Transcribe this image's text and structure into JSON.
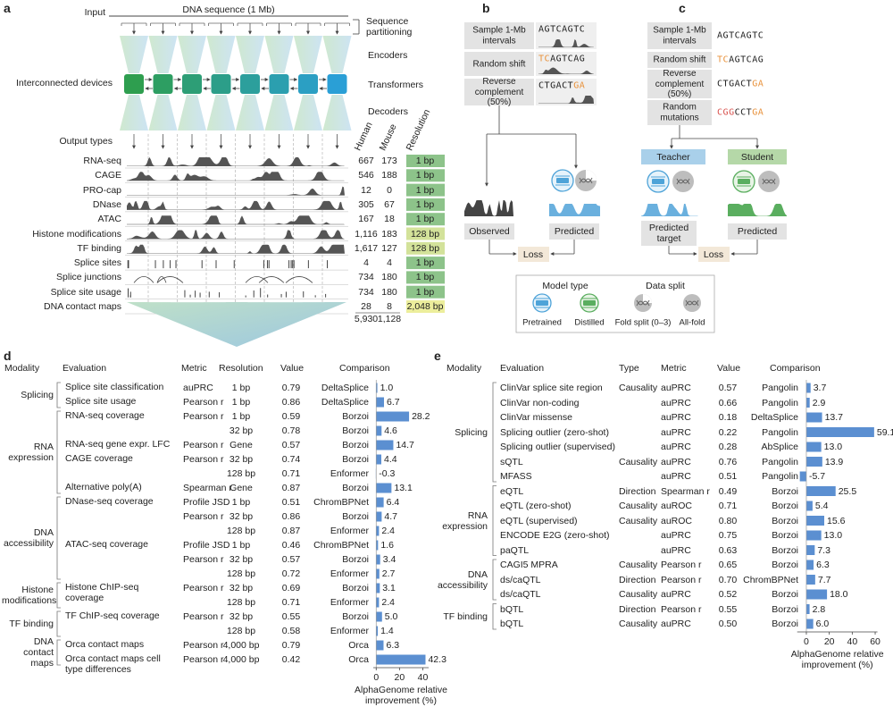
{
  "panel_a": {
    "label": "a",
    "input": "Input",
    "sequence": "DNA sequence (1 Mb)",
    "partitioning": "Sequence partitioning",
    "encoders": "Encoders",
    "transformers": "Transformers",
    "decoders": "Decoders",
    "devices": "Interconnected devices",
    "output_types": "Output types",
    "columns": [
      "Human",
      "Mouse",
      "Resolution"
    ],
    "tracks": [
      {
        "name": "RNA-seq",
        "human": "667",
        "mouse": "173",
        "resolution": "1 bp",
        "color": "#8dc38a"
      },
      {
        "name": "CAGE",
        "human": "546",
        "mouse": "188",
        "resolution": "1 bp",
        "color": "#8dc38a"
      },
      {
        "name": "PRO-cap",
        "human": "12",
        "mouse": "0",
        "resolution": "1 bp",
        "color": "#8dc38a"
      },
      {
        "name": "DNase",
        "human": "305",
        "mouse": "67",
        "resolution": "1 bp",
        "color": "#8dc38a"
      },
      {
        "name": "ATAC",
        "human": "167",
        "mouse": "18",
        "resolution": "1 bp",
        "color": "#8dc38a"
      },
      {
        "name": "Histone modifications",
        "human": "1,116",
        "mouse": "183",
        "resolution": "128 bp",
        "color": "#d3e29a"
      },
      {
        "name": "TF binding",
        "human": "1,617",
        "mouse": "127",
        "resolution": "128 bp",
        "color": "#d3e29a"
      },
      {
        "name": "Splice sites",
        "human": "4",
        "mouse": "4",
        "resolution": "1 bp",
        "color": "#8dc38a"
      },
      {
        "name": "Splice junctions",
        "human": "734",
        "mouse": "180",
        "resolution": "1 bp",
        "color": "#8dc38a"
      },
      {
        "name": "Splice site usage",
        "human": "734",
        "mouse": "180",
        "resolution": "1 bp",
        "color": "#8dc38a"
      },
      {
        "name": "DNA contact maps",
        "human": "28",
        "mouse": "8",
        "resolution": "2,048 bp",
        "color": "#ecee9c"
      }
    ],
    "totals": [
      "5,930",
      "1,128"
    ]
  },
  "panel_b": {
    "label": "b",
    "steps": [
      {
        "name": "Sample 1-Mb intervals",
        "sequence": "AGTCAGTC"
      },
      {
        "name": "Random shift",
        "sequence": "TCAGTCAG"
      },
      {
        "name": "Reverse complement (50%)",
        "sequence": "CTGACTGA"
      }
    ],
    "observed": "Observed",
    "predicted": "Predicted",
    "loss": "Loss"
  },
  "panel_c": {
    "label": "c",
    "steps": [
      {
        "name": "Sample 1-Mb intervals",
        "sequence": "AGTCAGTC"
      },
      {
        "name": "Random shift",
        "sequence": "TCAGTCAG"
      },
      {
        "name": "Reverse complement (50%)",
        "sequence": "CTGACTGA"
      },
      {
        "name": "Random mutations",
        "sequence": "CGGCCTGA"
      }
    ],
    "teacher": "Teacher",
    "student": "Student",
    "predicted_target": "Predicted target",
    "predicted": "Predicted",
    "loss": "Loss"
  },
  "legend": {
    "model_type": "Model type",
    "data_split": "Data split",
    "items": [
      "Pretrained",
      "Distilled",
      "Fold split (0–3)",
      "All-fold"
    ]
  },
  "panel_d": {
    "label": "d",
    "headers": [
      "Modality",
      "Evaluation",
      "Metric",
      "Resolution",
      "Value",
      "Comparison"
    ],
    "groups": [
      {
        "name": "Splicing",
        "first": 0,
        "last": 1
      },
      {
        "name": "RNA expression",
        "first": 2,
        "last": 7
      },
      {
        "name": "DNA accessibility",
        "first": 8,
        "last": 13
      },
      {
        "name": "Histone modifications",
        "first": 14,
        "last": 15
      },
      {
        "name": "TF binding",
        "first": 16,
        "last": 17
      },
      {
        "name": "DNA contact maps",
        "first": 18,
        "last": 19
      }
    ],
    "rows": [
      [
        "Splice site classification",
        "auPRC",
        "1 bp",
        "0.79",
        "DeltaSplice"
      ],
      [
        "Splice site usage",
        "Pearson r",
        "1 bp",
        "0.86",
        "DeltaSplice"
      ],
      [
        "RNA-seq coverage",
        "Pearson r",
        "1 bp",
        "0.59",
        "Borzoi"
      ],
      [
        null,
        null,
        "32 bp",
        "0.78",
        "Borzoi"
      ],
      [
        "RNA-seq gene expr. LFC",
        "Pearson r",
        "Gene",
        "0.57",
        "Borzoi"
      ],
      [
        "CAGE coverage",
        "Pearson r",
        "32 bp",
        "0.74",
        "Borzoi"
      ],
      [
        null,
        null,
        "128 bp",
        "0.71",
        "Enformer"
      ],
      [
        "Alternative poly(A)",
        "Spearman r",
        "Gene",
        "0.87",
        "Borzoi"
      ],
      [
        "DNase-seq coverage",
        "Profile JSD",
        "1 bp",
        "0.51",
        "ChromBPNet"
      ],
      [
        null,
        "Pearson r",
        "32 bp",
        "0.86",
        "Borzoi"
      ],
      [
        null,
        null,
        "128 bp",
        "0.87",
        "Enformer"
      ],
      [
        "ATAC-seq coverage",
        "Profile JSD",
        "1 bp",
        "0.46",
        "ChromBPNet"
      ],
      [
        null,
        "Pearson r",
        "32 bp",
        "0.57",
        "Borzoi"
      ],
      [
        null,
        null,
        "128 bp",
        "0.72",
        "Enformer"
      ],
      [
        "Histone ChIP-seq coverage",
        "Pearson r",
        "32 bp",
        "0.69",
        "Borzoi"
      ],
      [
        null,
        null,
        "128 bp",
        "0.71",
        "Enformer"
      ],
      [
        "TF ChIP-seq coverage",
        "Pearson r",
        "32 bp",
        "0.55",
        "Borzoi"
      ],
      [
        null,
        null,
        "128 bp",
        "0.58",
        "Enformer"
      ],
      [
        "Orca contact maps",
        "Pearson r",
        "4,000 bp",
        "0.79",
        "Orca"
      ],
      [
        "Orca contact maps cell type differences",
        "Pearson r",
        "4,000 bp",
        "0.42",
        "Orca"
      ]
    ],
    "chart": {
      "type": "bar",
      "values": [
        1.0,
        6.7,
        28.2,
        4.6,
        14.7,
        4.4,
        -0.3,
        13.1,
        6.4,
        4.7,
        2.4,
        1.6,
        3.4,
        2.7,
        3.1,
        2.4,
        5.0,
        1.4,
        6.3,
        42.3
      ],
      "value_labels": [
        "1.0",
        "6.7",
        "28.2",
        "4.6",
        "14.7",
        "4.4",
        "-0.3",
        "13.1",
        "6.4",
        "4.7",
        "2.4",
        "1.6",
        "3.4",
        "2.7",
        "3.1",
        "2.4",
        "5.0",
        "1.4",
        "6.3",
        "42.3"
      ],
      "xlim": [
        -2.5,
        45
      ],
      "xticks": [
        0,
        20,
        40
      ],
      "xlabel": "AlphaGenome relative improvement (%)",
      "color": "#5b8fd1"
    }
  },
  "panel_e": {
    "label": "e",
    "headers": [
      "Modality",
      "Evaluation",
      "Type",
      "Metric",
      "Value",
      "Comparison"
    ],
    "groups": [
      {
        "name": "Splicing",
        "first": 0,
        "last": 6
      },
      {
        "name": "RNA expression",
        "first": 7,
        "last": 11
      },
      {
        "name": "DNA accessibility",
        "first": 12,
        "last": 14
      },
      {
        "name": "TF binding",
        "first": 15,
        "last": 16
      }
    ],
    "rows": [
      [
        "ClinVar splice site region",
        "Causality",
        "auPRC",
        "0.57",
        "Pangolin"
      ],
      [
        "ClinVar non-coding",
        null,
        "auPRC",
        "0.66",
        "Pangolin"
      ],
      [
        "ClinVar missense",
        null,
        "auPRC",
        "0.18",
        "DeltaSplice"
      ],
      [
        "Splicing outlier (zero-shot)",
        null,
        "auPRC",
        "0.22",
        "Pangolin"
      ],
      [
        "Splicing outlier (supervised)",
        null,
        "auPRC",
        "0.28",
        "AbSplice"
      ],
      [
        "sQTL",
        "Causality",
        "auPRC",
        "0.76",
        "Pangolin"
      ],
      [
        "MFASS",
        null,
        "auPRC",
        "0.51",
        "Pangolin"
      ],
      [
        "eQTL",
        "Direction",
        "Spearman r",
        "0.49",
        "Borzoi"
      ],
      [
        "eQTL (zero-shot)",
        "Causality",
        "auROC",
        "0.71",
        "Borzoi"
      ],
      [
        "eQTL (supervised)",
        "Causality",
        "auROC",
        "0.80",
        "Borzoi"
      ],
      [
        "ENCODE E2G (zero-shot)",
        null,
        "auPRC",
        "0.75",
        "Borzoi"
      ],
      [
        "paQTL",
        null,
        "auPRC",
        "0.63",
        "Borzoi"
      ],
      [
        "CAGI5 MPRA",
        "Causality",
        "Pearson r",
        "0.65",
        "Borzoi"
      ],
      [
        "ds/caQTL",
        "Direction",
        "Pearson r",
        "0.70",
        "ChromBPNet"
      ],
      [
        "ds/caQTL",
        "Causality",
        "auPRC",
        "0.52",
        "Borzoi"
      ],
      [
        "bQTL",
        "Direction",
        "Pearson r",
        "0.55",
        "Borzoi"
      ],
      [
        "bQTL",
        "Causality",
        "auPRC",
        "0.50",
        "Borzoi"
      ]
    ],
    "chart": {
      "type": "bar",
      "values": [
        3.7,
        2.9,
        13.7,
        59.1,
        13.0,
        13.9,
        -5.7,
        25.5,
        5.4,
        15.6,
        13.0,
        7.3,
        6.3,
        7.7,
        18.0,
        2.8,
        6.0
      ],
      "value_labels": [
        "3.7",
        "2.9",
        "13.7",
        "59.1",
        "13.0",
        "13.9",
        "-5.7",
        "25.5",
        "5.4",
        "15.6",
        "13.0",
        "7.3",
        "6.3",
        "7.7",
        "18.0",
        "2.8",
        "6.0"
      ],
      "xlim": [
        -8,
        62
      ],
      "xticks": [
        0,
        20,
        40,
        60
      ],
      "xlabel": "AlphaGenome relative improvement (%)",
      "color": "#5b8fd1"
    }
  }
}
